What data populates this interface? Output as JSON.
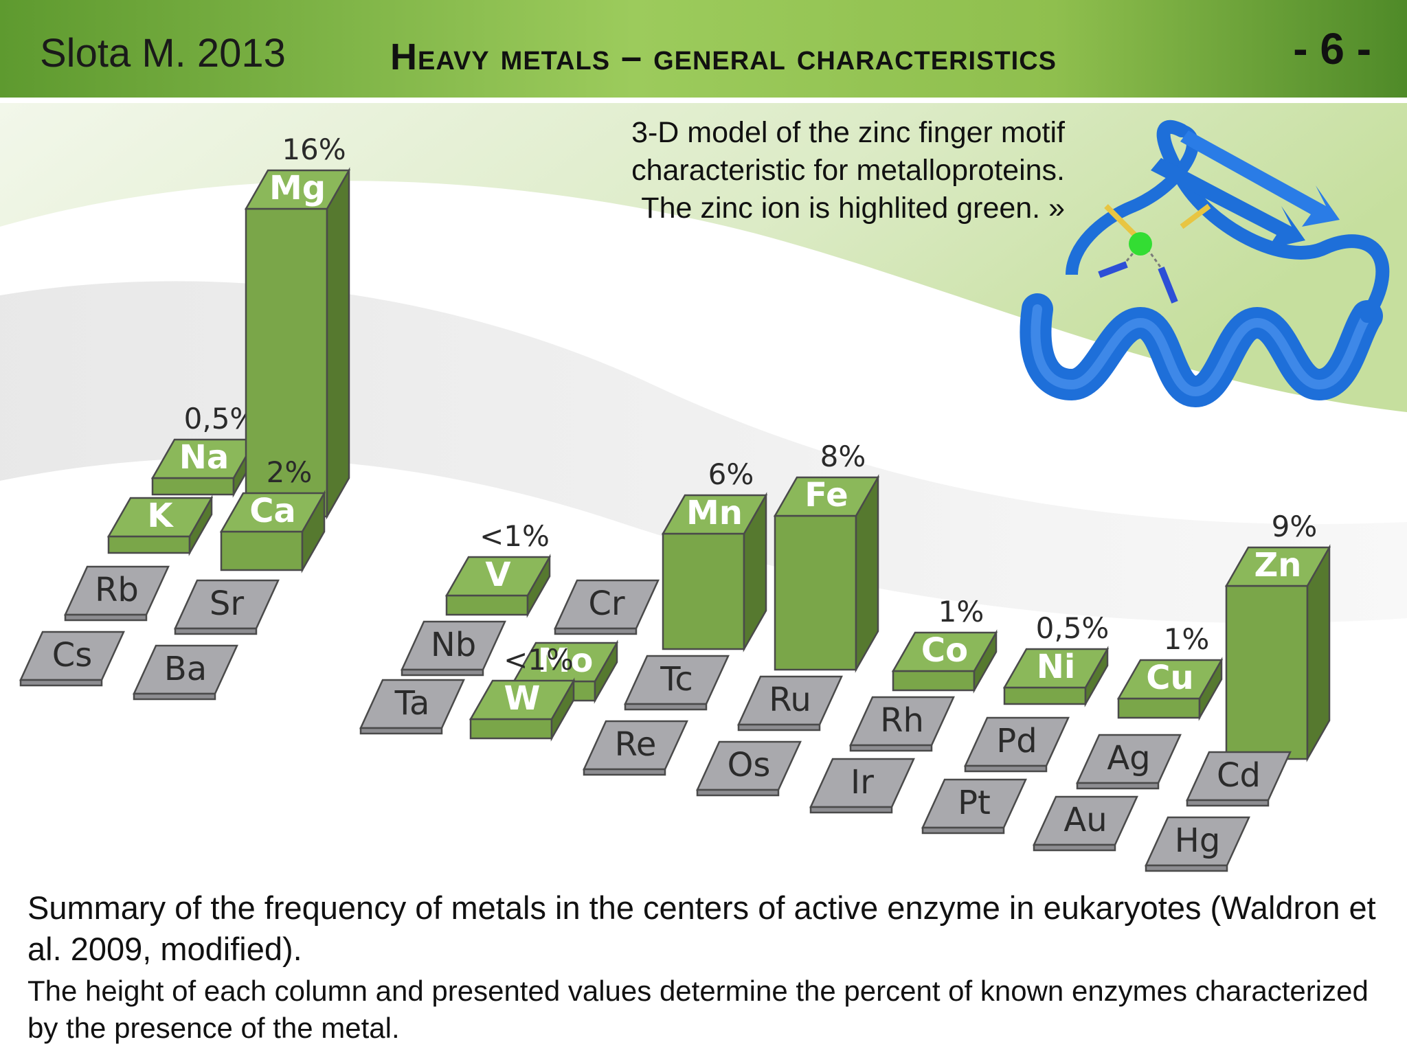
{
  "header": {
    "author": "Slota M. 2013",
    "title": "Heavy metals – general characteristics",
    "page": "- 6 -"
  },
  "figure_note": {
    "line1": "3-D model of the zinc finger motif",
    "line2": "characteristic for metalloproteins.",
    "line3": "The zinc ion is highlited green. »"
  },
  "icons": {
    "protein_model": "zinc-finger-protein-model-icon"
  },
  "summary": {
    "main": "Summary of the frequency of metals in the centers of active enzyme in eukaryotes (Waldron et al. 2009, modified).",
    "detail": "The height of each column and presented values determine the percent of known enzymes characterized by the presence of the metal."
  },
  "colors": {
    "header_green": "#7cb342",
    "bar_top": "#8bb85a",
    "bar_front": "#7aa649",
    "bar_side": "#56792f",
    "gray_tile": "#a9a9ad",
    "zinc_ion": "#33dd33",
    "protein": "#1e6fd9"
  },
  "chart_data": {
    "type": "bar",
    "title": "",
    "value_unit": "%",
    "series": [
      {
        "values": [
          {
            "symbol": "Mg",
            "value": 16,
            "label": "16%"
          },
          {
            "symbol": "Na",
            "value": 0.5,
            "label": "0,5%"
          },
          {
            "symbol": "K",
            "value": 0.5,
            "label": ""
          },
          {
            "symbol": "Ca",
            "value": 2,
            "label": "2%"
          },
          {
            "symbol": "V",
            "value": 1,
            "label": "<1%"
          },
          {
            "symbol": "Mo",
            "value": 1,
            "label": ""
          },
          {
            "symbol": "W",
            "value": 1,
            "label": "<1%"
          },
          {
            "symbol": "Mn",
            "value": 6,
            "label": "6%"
          },
          {
            "symbol": "Fe",
            "value": 8,
            "label": "8%"
          },
          {
            "symbol": "Co",
            "value": 1,
            "label": "1%"
          },
          {
            "symbol": "Ni",
            "value": 0.5,
            "label": "0,5%"
          },
          {
            "symbol": "Cu",
            "value": 1,
            "label": "1%"
          },
          {
            "symbol": "Zn",
            "value": 9,
            "label": "9%"
          }
        ]
      }
    ],
    "absent_elements": [
      "Rb",
      "Cs",
      "Sr",
      "Ba",
      "Nb",
      "Ta",
      "Cr",
      "Tc",
      "Re",
      "Ru",
      "Os",
      "Rh",
      "Ir",
      "Pd",
      "Pt",
      "Ag",
      "Au",
      "Cd",
      "Hg"
    ]
  }
}
